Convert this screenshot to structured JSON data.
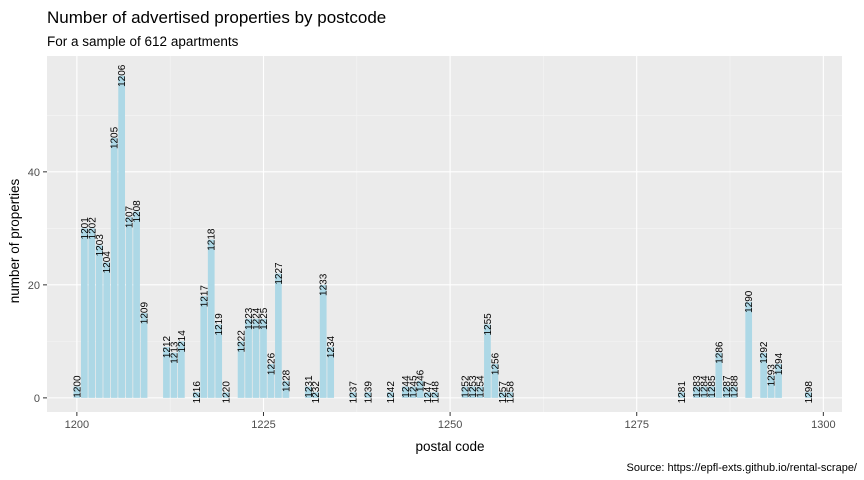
{
  "chart_data": {
    "type": "bar",
    "title": "Number of advertised properties by postcode",
    "subtitle": "For a sample of 612 apartments",
    "xlabel": "postal code",
    "ylabel": "number of properties",
    "caption": "Source: https://epfl-exts.github.io/rental-scrape/",
    "xlim": [
      1196.0,
      1302.5
    ],
    "ylim": [
      -2.5,
      60.5
    ],
    "x_ticks": [
      1200,
      1225,
      1250,
      1275,
      1300
    ],
    "y_ticks": [
      0,
      20,
      40
    ],
    "grid": true,
    "legend": "none",
    "bar_color": "#add8e6",
    "panel_background": "#ebebeb",
    "x": [
      1200,
      1201,
      1202,
      1203,
      1204,
      1205,
      1206,
      1207,
      1208,
      1209,
      1212,
      1213,
      1214,
      1216,
      1217,
      1218,
      1219,
      1220,
      1222,
      1223,
      1224,
      1225,
      1226,
      1227,
      1228,
      1231,
      1232,
      1233,
      1234,
      1237,
      1239,
      1242,
      1244,
      1245,
      1246,
      1247,
      1248,
      1252,
      1253,
      1254,
      1255,
      1256,
      1257,
      1258,
      1281,
      1283,
      1284,
      1285,
      1286,
      1287,
      1288,
      1290,
      1292,
      1293,
      1294,
      1298
    ],
    "values": [
      2,
      30,
      30,
      27,
      24,
      46,
      57,
      32,
      33,
      15,
      9,
      8,
      10,
      1,
      18,
      28,
      13,
      1,
      10,
      14,
      14,
      14,
      6,
      22,
      3,
      2,
      1,
      20,
      9,
      1,
      1,
      1,
      2,
      2,
      3,
      1,
      1,
      2,
      2,
      2,
      13,
      6,
      1,
      1,
      1,
      2,
      2,
      2,
      8,
      2,
      2,
      17,
      8,
      4,
      6,
      1
    ],
    "labels": [
      "1200",
      "1201",
      "1202",
      "1203",
      "1204",
      "1205",
      "1206",
      "1207",
      "1208",
      "1209",
      "1212",
      "1213",
      "1214",
      "1216",
      "1217",
      "1218",
      "1219",
      "1220",
      "1222",
      "1223",
      "1224",
      "1225",
      "1226",
      "1227",
      "1228",
      "1231",
      "1232",
      "1233",
      "1234",
      "1237",
      "1239",
      "1242",
      "1244",
      "1245",
      "1246",
      "1247",
      "1248",
      "1252",
      "1253",
      "1254",
      "1255",
      "1256",
      "1257",
      "1258",
      "1281",
      "1283",
      "1284",
      "1285",
      "1286",
      "1287",
      "1288",
      "1290",
      "1292",
      "1293",
      "1294",
      "1298"
    ]
  }
}
